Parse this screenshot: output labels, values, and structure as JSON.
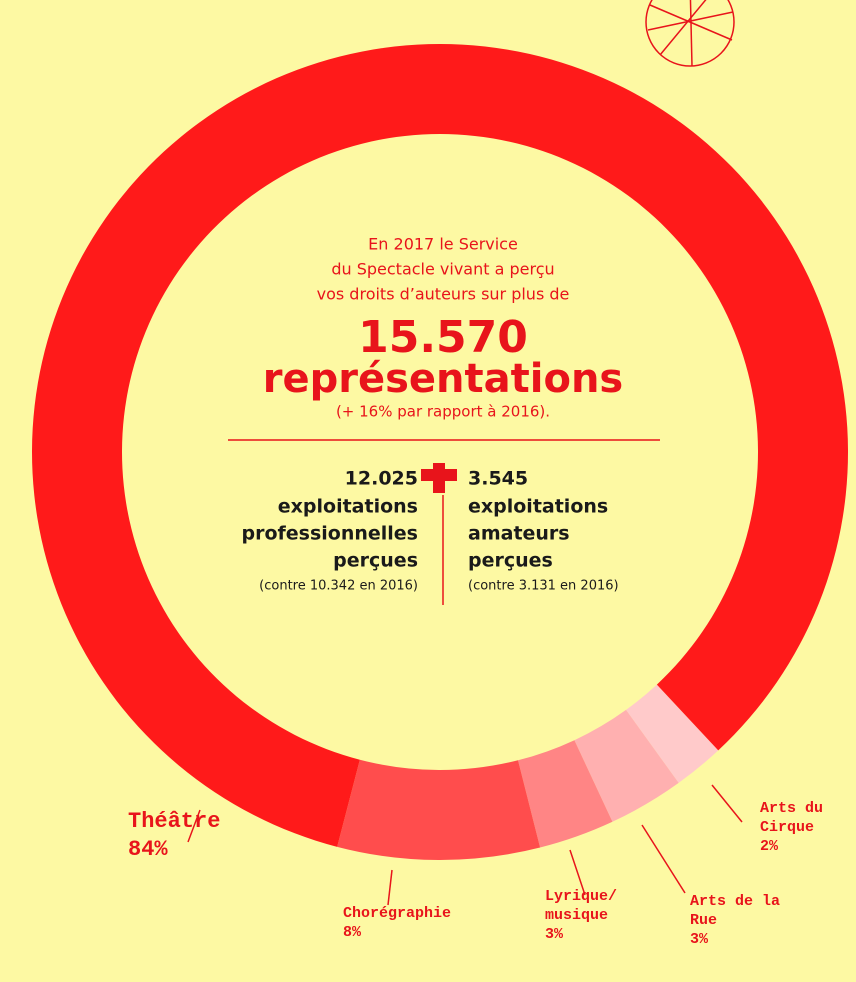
{
  "chart_data": {
    "type": "donut",
    "categories": [
      "Théâtre",
      "Chorégraphie",
      "Lyrique/ musique",
      "Arts de la Rue",
      "Arts du Cirque"
    ],
    "values": [
      84,
      8,
      3,
      3,
      2
    ],
    "value_labels": [
      "84%",
      "8%",
      "3%",
      "3%",
      "2%"
    ],
    "colors": [
      "#ff1a1a",
      "#ff4d4d",
      "#ff8585",
      "#ffb0b0",
      "#ffcaca"
    ]
  },
  "center_text": {
    "intro_lines": [
      "En 2017 le Service",
      "du Spectacle vivant a perçu",
      "vos droits d’auteurs sur plus de"
    ],
    "total": "15.570",
    "unit": "représentations",
    "comparison": "(+ 16% par rapport à 2016).",
    "left": {
      "count": "12.025",
      "label_lines": [
        "exploitations",
        "professionnelles",
        "perçues"
      ],
      "note": "(contre 10.342 en 2016)"
    },
    "right": {
      "count": "3.545",
      "label_lines": [
        "exploitations",
        "amateurs",
        "perçues"
      ],
      "note": "(contre 3.131 en 2016)"
    }
  }
}
